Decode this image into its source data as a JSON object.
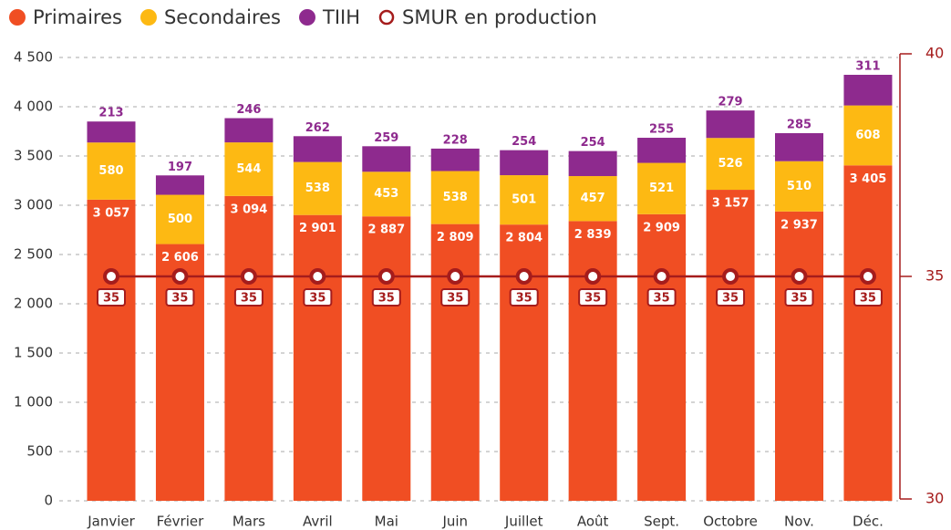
{
  "chart_data": {
    "type": "stacked-bar-line",
    "categories": [
      "Janvier",
      "Février",
      "Mars",
      "Avril",
      "Mai",
      "Juin",
      "Juillet",
      "Août",
      "Sept.",
      "Octobre",
      "Nov.",
      "Déc."
    ],
    "series": [
      {
        "name": "Primaires",
        "color": "#f04e23",
        "values": [
          3057,
          2606,
          3094,
          2901,
          2887,
          2809,
          2804,
          2839,
          2909,
          3157,
          2937,
          3405
        ],
        "value_labels": [
          "3 057",
          "2 606",
          "3 094",
          "2 901",
          "2 887",
          "2 809",
          "2 804",
          "2 839",
          "2 909",
          "3 157",
          "2 937",
          "3 405"
        ]
      },
      {
        "name": "Secondaires",
        "color": "#fdb913",
        "values": [
          580,
          500,
          544,
          538,
          453,
          538,
          501,
          457,
          521,
          526,
          510,
          608
        ]
      },
      {
        "name": "TIIH",
        "color": "#8e2a8e",
        "values": [
          213,
          197,
          246,
          262,
          259,
          228,
          254,
          254,
          255,
          279,
          285,
          311
        ]
      },
      {
        "name": "SMUR en production",
        "color": "#a51c1c",
        "axis": "y2",
        "values": [
          35,
          35,
          35,
          35,
          35,
          35,
          35,
          35,
          35,
          35,
          35,
          35
        ]
      }
    ],
    "ylim": [
      0,
      4500
    ],
    "yticks": [
      0,
      500,
      {
        "value": 1000,
        "label": "1 000"
      },
      {
        "value": 1500,
        "label": "1 500"
      },
      {
        "value": 2000,
        "label": "2 000"
      },
      {
        "value": 2500,
        "label": "2 500"
      },
      {
        "value": 3000,
        "label": "3 000"
      },
      {
        "value": 3500,
        "label": "3 500"
      },
      {
        "value": 4000,
        "label": "4 000"
      },
      {
        "value": 4500,
        "label": "4 500"
      }
    ],
    "y2lim": [
      30,
      40
    ],
    "y2ticks": [
      30,
      35,
      40
    ],
    "grid": true,
    "legend": "top-left"
  }
}
